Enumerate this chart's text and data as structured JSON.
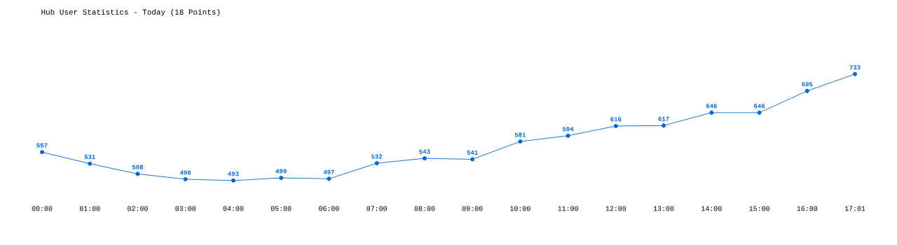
{
  "chart_data": {
    "type": "line",
    "title": "Hub User Statistics - Today (18 Points)",
    "categories": [
      "00:00",
      "01:00",
      "02:00",
      "03:00",
      "04:00",
      "05:00",
      "06:00",
      "07:00",
      "08:00",
      "09:00",
      "10:00",
      "11:00",
      "12:00",
      "13:00",
      "14:00",
      "15:00",
      "16:00",
      "17:01"
    ],
    "values": [
      557,
      531,
      508,
      496,
      493,
      499,
      497,
      532,
      543,
      541,
      581,
      594,
      616,
      617,
      646,
      646,
      695,
      733
    ],
    "color": "#0066cc",
    "data_labels": true,
    "marker": "circle",
    "line_style": "solid"
  }
}
